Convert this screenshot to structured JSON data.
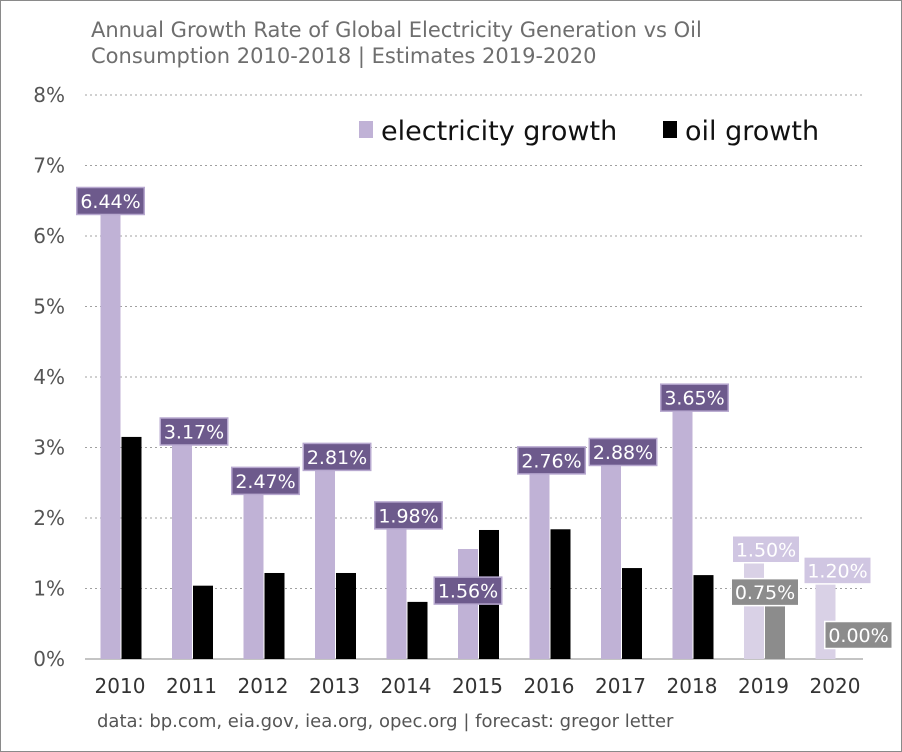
{
  "chart_data": {
    "type": "bar",
    "title_lines": [
      "Annual Growth Rate of Global Electricity Generation vs Oil",
      "Consumption 2010-2018 | Estimates 2019-2020"
    ],
    "categories": [
      "2010",
      "2011",
      "2012",
      "2013",
      "2014",
      "2015",
      "2016",
      "2017",
      "2018",
      "2019",
      "2020"
    ],
    "series": [
      {
        "name": "electricity growth",
        "values": [
          6.44,
          3.17,
          2.47,
          2.81,
          1.98,
          1.56,
          2.76,
          2.88,
          3.65,
          1.5,
          1.2
        ],
        "labels": [
          "6.44%",
          "3.17%",
          "2.47%",
          "2.81%",
          "1.98%",
          "1.56%",
          "2.76%",
          "2.88%",
          "3.65%",
          "1.50%",
          "1.20%"
        ]
      },
      {
        "name": "oil growth",
        "values": [
          3.15,
          1.04,
          1.22,
          1.22,
          0.81,
          1.83,
          1.84,
          1.29,
          1.19,
          0.75,
          0.0
        ],
        "labels": [
          "",
          "",
          "",
          "",
          "",
          "",
          "",
          "",
          "",
          "0.75%",
          "0.00%"
        ]
      }
    ],
    "ylim": [
      0,
      8
    ],
    "yticks": [
      "0%",
      "1%",
      "2%",
      "3%",
      "4%",
      "5%",
      "6%",
      "7%",
      "8%"
    ],
    "grid": true,
    "legend_position": "top-right",
    "estimate_categories": [
      "2019",
      "2020"
    ],
    "colors": {
      "electricity": "#c0b2d6",
      "electricity_estimate": "#d9d1e6",
      "oil": "#000000",
      "oil_estimate": "#8c8c8c",
      "label_box": "#6d5a8c",
      "label_box_estimate": "#d0c6e2",
      "label_box_oil_estimate": "#8c8c8c"
    }
  },
  "source_note": "data: bp.com, eia.gov, iea.org, opec.org | forecast: gregor letter"
}
